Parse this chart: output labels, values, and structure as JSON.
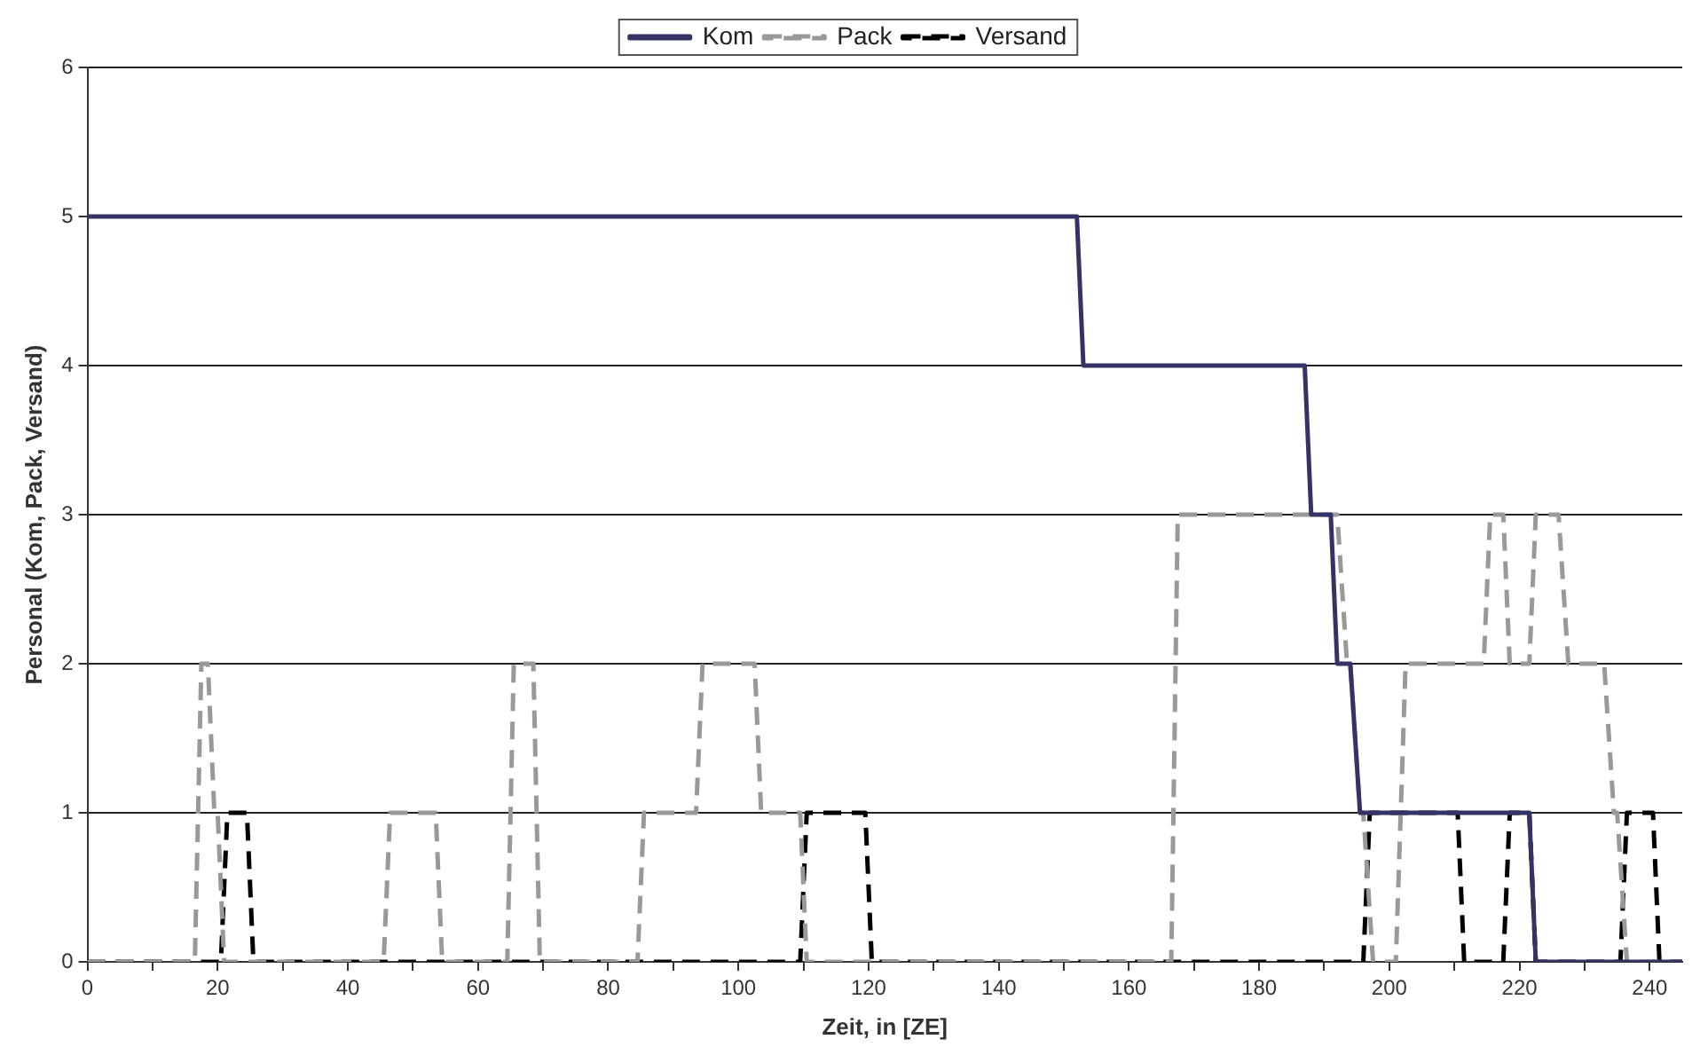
{
  "chart_data": {
    "type": "line",
    "xlabel": "Zeit, in [ZE]",
    "ylabel": "Personal (Kom, Pack, Versand)",
    "xlim": [
      0,
      245
    ],
    "ylim": [
      0,
      6
    ],
    "xticks": [
      0,
      {
        "value": 10,
        "label": null
      },
      20,
      {
        "value": 30,
        "label": null
      },
      40,
      {
        "value": 50,
        "label": null
      },
      60,
      {
        "value": 70,
        "label": null
      },
      80,
      {
        "value": 90,
        "label": null
      },
      100,
      {
        "value": 110,
        "label": null
      },
      120,
      {
        "value": 130,
        "label": null
      },
      140,
      {
        "value": 150,
        "label": null
      },
      160,
      {
        "value": 170,
        "label": null
      },
      180,
      {
        "value": 190,
        "label": null
      },
      200,
      {
        "value": 210,
        "label": null
      },
      220,
      {
        "value": 230,
        "label": null
      },
      240
    ],
    "yticks": [
      0,
      1,
      2,
      3,
      4,
      5,
      6
    ],
    "grid": "y",
    "legend": "top",
    "marker": "none",
    "series": [
      {
        "name": "Kom",
        "color": "#333366",
        "line_style": "solid",
        "x": [
          0,
          152,
          153,
          187,
          188,
          191,
          192,
          194,
          195.5,
          221.5,
          222.5,
          245
        ],
        "values": [
          5,
          5,
          4,
          4,
          3,
          3,
          2,
          2,
          1,
          1,
          0,
          0
        ]
      },
      {
        "name": "Pack",
        "color": "#999999",
        "line_style": "dashed",
        "x": [
          0,
          16.5,
          17.5,
          18.5,
          19.5,
          20,
          21,
          45.5,
          46.5,
          53.5,
          54.5,
          64.5,
          65.5,
          68.5,
          69.5,
          84.5,
          85.5,
          93.5,
          94.5,
          102.5,
          103.5,
          109.5,
          110.5,
          166.5,
          167.5,
          192,
          193.5,
          194,
          195.5,
          196,
          197.5,
          201,
          202.5,
          214.5,
          215.5,
          217.5,
          218.5,
          221.5,
          222.5,
          226,
          227.5,
          233,
          234.5,
          235,
          236.5,
          245
        ],
        "values": [
          0,
          0,
          2,
          2,
          1,
          1,
          0,
          0,
          1,
          1,
          0,
          0,
          2,
          2,
          0,
          0,
          1,
          1,
          2,
          2,
          1,
          1,
          0,
          0,
          3,
          3,
          2,
          2,
          1,
          1,
          0,
          0,
          2,
          2,
          3,
          3,
          2,
          2,
          3,
          3,
          2,
          2,
          1,
          1,
          0,
          0
        ]
      },
      {
        "name": "Versand",
        "color": "#000000",
        "line_style": "dashed",
        "x": [
          0,
          20.5,
          21.5,
          24.5,
          25.5,
          109.5,
          110.5,
          119.5,
          120.5,
          196,
          197,
          210.5,
          211.5,
          217.5,
          218.5,
          221.5,
          222.5,
          235.5,
          236.5,
          240.5,
          241.5,
          245
        ],
        "values": [
          0,
          0,
          1,
          1,
          0,
          0,
          1,
          1,
          0,
          0,
          1,
          1,
          0,
          0,
          1,
          1,
          0,
          0,
          1,
          1,
          0,
          0
        ]
      }
    ]
  }
}
